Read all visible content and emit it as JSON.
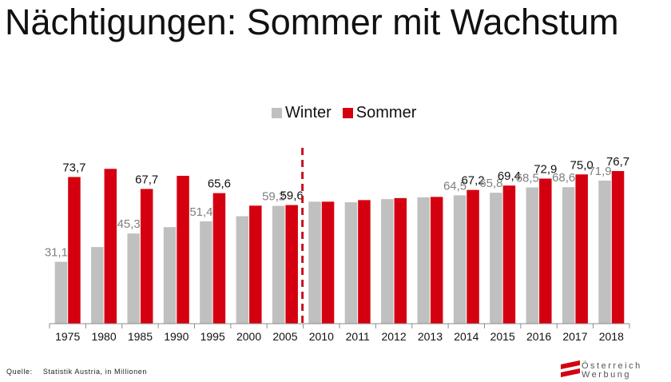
{
  "title": "Nächtigungen: Sommer mit Wachstum",
  "source": {
    "label": "Quelle:",
    "text": "Statistik Austria, in Millionen"
  },
  "logo": {
    "line1": "Österreich",
    "line2": "Werbung"
  },
  "colors": {
    "winter": "#c0c0c0",
    "summer": "#d5000f",
    "divider": "#c8101e",
    "brand_red": "#d5000f"
  },
  "chart_data": {
    "type": "bar",
    "categories": [
      "1975",
      "1980",
      "1985",
      "1990",
      "1995",
      "2000",
      "2005",
      "2010",
      "2011",
      "2012",
      "2013",
      "2014",
      "2015",
      "2016",
      "2017",
      "2018"
    ],
    "series": [
      {
        "name": "Winter",
        "values": [
          31.1,
          38.5,
          45.3,
          48.5,
          51.4,
          54.0,
          59.2,
          61.3,
          61.0,
          62.6,
          63.5,
          64.5,
          65.8,
          68.5,
          68.6,
          71.9
        ]
      },
      {
        "name": "Sommer",
        "values": [
          73.7,
          77.8,
          67.7,
          74.3,
          65.6,
          59.3,
          59.6,
          61.3,
          62.1,
          63.1,
          63.7,
          67.2,
          69.4,
          72.9,
          75.0,
          76.7
        ]
      }
    ],
    "data_labels": {
      "Winter": [
        "31,1",
        null,
        "45,3",
        null,
        "51,4",
        null,
        "59,2",
        null,
        null,
        null,
        null,
        "64,5",
        "65,8",
        "68,5",
        "68,6",
        "71,9"
      ],
      "Sommer": [
        "73,7",
        null,
        "67,7",
        null,
        "65,6",
        null,
        "59,6",
        null,
        null,
        null,
        null,
        "67,2",
        "69,4",
        "72,9",
        "75,0",
        "76,7"
      ]
    },
    "ylim": [
      0,
      100
    ],
    "divider_between": [
      "2005",
      "2010"
    ],
    "legend_position": "top-center",
    "grid": false
  }
}
